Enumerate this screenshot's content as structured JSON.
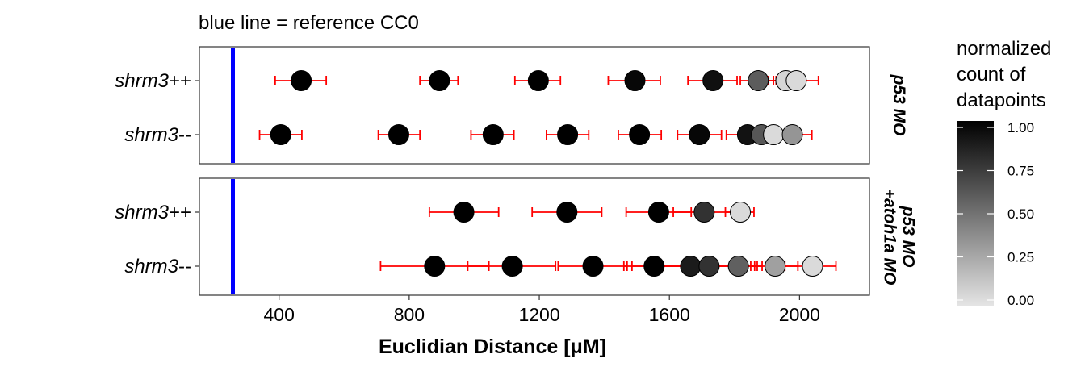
{
  "chart_data": {
    "type": "scatter",
    "title": "blue line = reference CC0",
    "xlabel": "Euclidian Distance [μM]",
    "x_ticks": [
      400,
      800,
      1200,
      1600,
      2000
    ],
    "xlim": [
      155,
      2215
    ],
    "reference_line": {
      "x": 258,
      "color": "#0000ff"
    },
    "error_bar_color": "#ff0000",
    "panels": [
      {
        "strip_label": "p53 MO",
        "rows": [
          {
            "label_italic": "shrm3",
            "label_suffix": "++",
            "points": [
              {
                "x": 468,
                "xmin": 388,
                "xmax": 545,
                "value": 1.0
              },
              {
                "x": 893,
                "xmin": 833,
                "xmax": 950,
                "value": 1.0
              },
              {
                "x": 1197,
                "xmin": 1125,
                "xmax": 1265,
                "value": 1.0
              },
              {
                "x": 1494,
                "xmin": 1412,
                "xmax": 1572,
                "value": 0.97
              },
              {
                "x": 1734,
                "xmin": 1657,
                "xmax": 1808,
                "value": 0.93
              },
              {
                "x": 1873,
                "xmin": 1818,
                "xmax": 1928,
                "value": 0.6
              },
              {
                "x": 1958,
                "xmin": 1903,
                "xmax": 2010,
                "value": 0.07
              },
              {
                "x": 1990,
                "xmin": 1920,
                "xmax": 2058,
                "value": 0.05
              }
            ]
          },
          {
            "label_italic": "shrm3",
            "label_suffix": "--",
            "points": [
              {
                "x": 405,
                "xmin": 340,
                "xmax": 470,
                "value": 1.0
              },
              {
                "x": 768,
                "xmin": 705,
                "xmax": 833,
                "value": 1.0
              },
              {
                "x": 1058,
                "xmin": 990,
                "xmax": 1122,
                "value": 1.0
              },
              {
                "x": 1287,
                "xmin": 1222,
                "xmax": 1352,
                "value": 1.0
              },
              {
                "x": 1508,
                "xmin": 1443,
                "xmax": 1575,
                "value": 1.0
              },
              {
                "x": 1692,
                "xmin": 1625,
                "xmax": 1760,
                "value": 0.97
              },
              {
                "x": 1840,
                "xmin": 1775,
                "xmax": 1905,
                "value": 0.92
              },
              {
                "x": 1883,
                "xmin": 1820,
                "xmax": 1945,
                "value": 0.62
              },
              {
                "x": 1920,
                "xmin": 1855,
                "xmax": 1985,
                "value": 0.05
              },
              {
                "x": 1978,
                "xmin": 1915,
                "xmax": 2038,
                "value": 0.35
              }
            ]
          }
        ]
      },
      {
        "strip_label": "p53 MO +atoh1a MO",
        "rows": [
          {
            "label_italic": "shrm3",
            "label_suffix": "++",
            "points": [
              {
                "x": 968,
                "xmin": 862,
                "xmax": 1075,
                "value": 1.0
              },
              {
                "x": 1285,
                "xmin": 1178,
                "xmax": 1392,
                "value": 1.0
              },
              {
                "x": 1567,
                "xmin": 1467,
                "xmax": 1667,
                "value": 1.0
              },
              {
                "x": 1707,
                "xmin": 1612,
                "xmax": 1798,
                "value": 0.78
              },
              {
                "x": 1818,
                "xmin": 1772,
                "xmax": 1860,
                "value": 0.05
              }
            ]
          },
          {
            "label_italic": "shrm3",
            "label_suffix": "--",
            "points": [
              {
                "x": 878,
                "xmin": 712,
                "xmax": 1045,
                "value": 1.0
              },
              {
                "x": 1117,
                "xmin": 980,
                "xmax": 1250,
                "value": 1.0
              },
              {
                "x": 1365,
                "xmin": 1258,
                "xmax": 1470,
                "value": 1.0
              },
              {
                "x": 1553,
                "xmin": 1460,
                "xmax": 1645,
                "value": 1.0
              },
              {
                "x": 1665,
                "xmin": 1485,
                "xmax": 1862,
                "value": 0.88
              },
              {
                "x": 1722,
                "xmin": 1580,
                "xmax": 1870,
                "value": 0.78
              },
              {
                "x": 1812,
                "xmin": 1738,
                "xmax": 1885,
                "value": 0.58
              },
              {
                "x": 1925,
                "xmin": 1850,
                "xmax": 1995,
                "value": 0.3
              },
              {
                "x": 2040,
                "xmin": 1955,
                "xmax": 2112,
                "value": 0.05
              }
            ]
          }
        ]
      }
    ],
    "legend": {
      "title_lines": [
        "normalized",
        "count of",
        "datapoints"
      ],
      "ticks": [
        "1.00",
        "0.75",
        "0.50",
        "0.25",
        "0.00"
      ],
      "tick_values": [
        1.0,
        0.75,
        0.5,
        0.25,
        0.0
      ],
      "colors": [
        "#000000",
        "#e5e5e5"
      ],
      "placement": "right"
    }
  }
}
